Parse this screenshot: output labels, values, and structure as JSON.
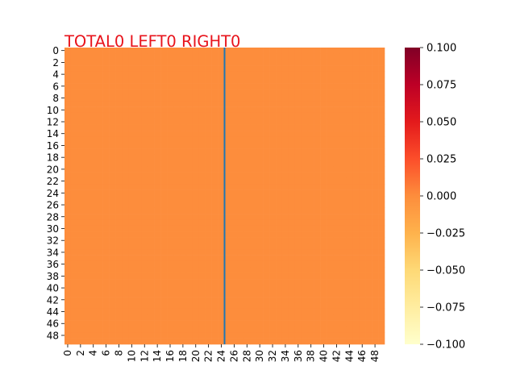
{
  "chart_data": {
    "type": "heatmap",
    "title": "TOTAL0  LEFT0 RIGHT0",
    "grid": false,
    "rows": 50,
    "cols": 50,
    "fill_value": 0,
    "cell_color": "#fd8d3c",
    "x_tick_labels": [
      "0",
      "2",
      "4",
      "6",
      "8",
      "10",
      "12",
      "14",
      "16",
      "18",
      "20",
      "22",
      "24",
      "26",
      "28",
      "30",
      "32",
      "34",
      "36",
      "38",
      "40",
      "42",
      "44",
      "46",
      "48"
    ],
    "y_tick_labels": [
      "0",
      "2",
      "4",
      "6",
      "8",
      "10",
      "12",
      "14",
      "16",
      "18",
      "20",
      "22",
      "24",
      "26",
      "28",
      "30",
      "32",
      "34",
      "36",
      "38",
      "40",
      "42",
      "44",
      "46",
      "48"
    ],
    "vertical_line": {
      "x": 25,
      "color": "#1f77b4"
    },
    "colorbar": {
      "colormap": "YlOrRd",
      "range": [
        -0.1,
        0.1
      ],
      "tick_values": [
        0.1,
        0.075,
        0.05,
        0.025,
        0.0,
        -0.025,
        -0.05,
        -0.075,
        -0.1
      ],
      "tick_labels": [
        "0.100",
        "0.075",
        "0.050",
        "0.025",
        "0.000",
        "−0.025",
        "−0.050",
        "−0.075",
        "−0.100"
      ],
      "color_stops": [
        "#ffffcc",
        "#ffeda0",
        "#fed976",
        "#feb24c",
        "#fd8d3c",
        "#fc4e2a",
        "#e31a1c",
        "#bd0026",
        "#800026"
      ]
    }
  }
}
